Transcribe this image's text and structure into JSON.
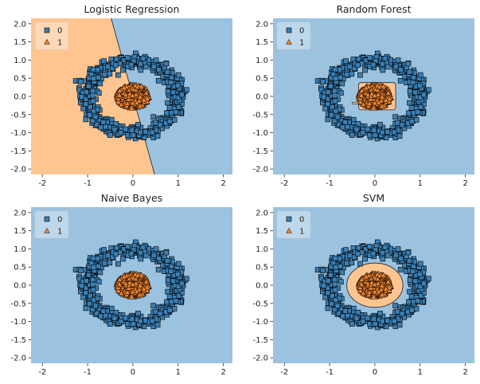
{
  "colors": {
    "class0_region": "#9bc2df",
    "class1_region": "#fec591",
    "class0_marker": "#3a7fb4",
    "class1_marker": "#ef8530",
    "marker_edge": "#000000"
  },
  "chart_data": [
    {
      "type": "scatter",
      "title": "Logistic Regression",
      "boundary": "linear",
      "xlim": [
        -2.25,
        2.2
      ],
      "ylim": [
        -2.15,
        2.15
      ],
      "xticks": [
        -2,
        -1,
        0,
        1,
        2
      ],
      "yticks": [
        -2.0,
        -1.5,
        -1.0,
        -0.5,
        0.0,
        0.5,
        1.0,
        1.5,
        2.0
      ],
      "legend": {
        "position": "top-left",
        "entries": [
          "0",
          "1"
        ]
      },
      "series": [
        {
          "name": "0",
          "marker": "square",
          "shape": "ring",
          "radius": 1.0,
          "noise": 0.1,
          "count": 500
        },
        {
          "name": "1",
          "marker": "triangle",
          "shape": "disk",
          "radius": 0.33,
          "count": 500
        }
      ]
    },
    {
      "type": "scatter",
      "title": "Random Forest",
      "boundary": "box",
      "xlim": [
        -2.25,
        2.2
      ],
      "ylim": [
        -2.15,
        2.15
      ],
      "xticks": [
        -2,
        -1,
        0,
        1,
        2
      ],
      "yticks": [
        -2.0,
        -1.5,
        -1.0,
        -0.5,
        0.0,
        0.5,
        1.0,
        1.5,
        2.0
      ],
      "legend": {
        "position": "top-left",
        "entries": [
          "0",
          "1"
        ]
      },
      "series": [
        {
          "name": "0",
          "marker": "square",
          "shape": "ring",
          "radius": 1.0,
          "noise": 0.1,
          "count": 500
        },
        {
          "name": "1",
          "marker": "triangle",
          "shape": "disk",
          "radius": 0.33,
          "count": 500
        }
      ]
    },
    {
      "type": "scatter",
      "title": "Naive Bayes",
      "boundary": "small-ellipse",
      "xlim": [
        -2.25,
        2.2
      ],
      "ylim": [
        -2.15,
        2.15
      ],
      "xticks": [
        -2,
        -1,
        0,
        1,
        2
      ],
      "yticks": [
        -2.0,
        -1.5,
        -1.0,
        -0.5,
        0.0,
        0.5,
        1.0,
        1.5,
        2.0
      ],
      "legend": {
        "position": "top-left",
        "entries": [
          "0",
          "1"
        ]
      },
      "series": [
        {
          "name": "0",
          "marker": "square",
          "shape": "ring",
          "radius": 1.0,
          "noise": 0.1,
          "count": 500
        },
        {
          "name": "1",
          "marker": "triangle",
          "shape": "disk",
          "radius": 0.33,
          "count": 500
        }
      ]
    },
    {
      "type": "scatter",
      "title": "SVM",
      "boundary": "ellipse",
      "xlim": [
        -2.25,
        2.2
      ],
      "ylim": [
        -2.15,
        2.15
      ],
      "xticks": [
        -2,
        -1,
        0,
        1,
        2
      ],
      "yticks": [
        -2.0,
        -1.5,
        -1.0,
        -0.5,
        0.0,
        0.5,
        1.0,
        1.5,
        2.0
      ],
      "legend": {
        "position": "top-left",
        "entries": [
          "0",
          "1"
        ]
      },
      "series": [
        {
          "name": "0",
          "marker": "square",
          "shape": "ring",
          "radius": 1.0,
          "noise": 0.1,
          "count": 500
        },
        {
          "name": "1",
          "marker": "triangle",
          "shape": "disk",
          "radius": 0.33,
          "count": 500
        }
      ]
    }
  ]
}
